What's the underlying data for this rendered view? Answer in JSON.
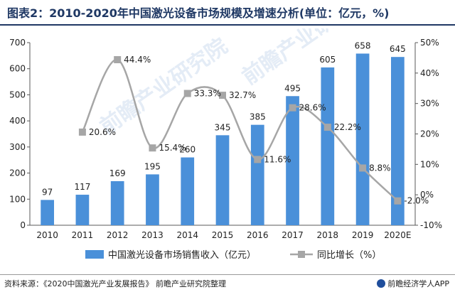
{
  "title": "图表2：2010-2020年中国激光设备市场规模及增速分析(单位：亿元，%)",
  "source": "资料来源：《2020中国激光产业发展报告》 前瞻产业研究院整理",
  "brand": "前瞻经济学人APP",
  "watermark": "前瞻产业研究院",
  "chart_data": {
    "type": "bar",
    "categories": [
      "2010",
      "2011",
      "2012",
      "2013",
      "2014",
      "2015",
      "2016",
      "2017",
      "2018",
      "2019",
      "2020E"
    ],
    "series": [
      {
        "name": "中国激光设备市场销售收入（亿元）",
        "type": "bar",
        "axis": "left",
        "color": "#4a90d9",
        "values": [
          97,
          117,
          169,
          195,
          260,
          345,
          385,
          495,
          605,
          658,
          645
        ],
        "labels": [
          "97",
          "117",
          "169",
          "195",
          "260",
          "345",
          "385",
          "495",
          "605",
          "658",
          "645"
        ]
      },
      {
        "name": "同比增长（%）",
        "type": "line",
        "axis": "right",
        "color": "#a6a6a6",
        "values": [
          null,
          20.6,
          44.4,
          15.4,
          33.3,
          32.7,
          11.6,
          28.6,
          22.2,
          8.8,
          -2.0
        ],
        "labels": [
          "",
          "20.6%",
          "44.4%",
          "15.4%",
          "33.3%",
          "32.7%",
          "11.6%",
          "28.6%",
          "22.2%",
          "8.8%",
          "-2.0%"
        ]
      }
    ],
    "y_left": {
      "min": 0,
      "max": 700,
      "ticks": [
        "0",
        "100",
        "200",
        "300",
        "400",
        "500",
        "600",
        "700"
      ]
    },
    "y_right": {
      "min": -10,
      "max": 50,
      "ticks": [
        "-10%",
        "0%",
        "10%",
        "20%",
        "30%",
        "40%",
        "50%"
      ]
    },
    "grid": false,
    "legend": "bottom"
  }
}
